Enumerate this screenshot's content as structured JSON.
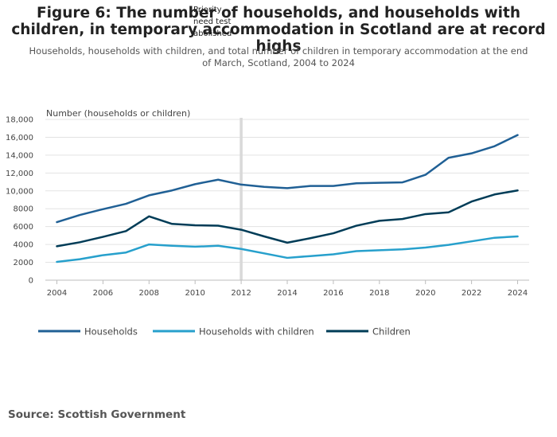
{
  "title": "Figure 6: The number of households, and households with children, in temporary accommodation in Scotland are at record highs",
  "subtitle": "Households, households with children, and total number of children in temporary accommodation at the end of March, Scotland, 2004 to 2024",
  "source": "Source: Scottish Government",
  "chart_data": {
    "type": "line",
    "title": "Figure 6: The number of households, and households with children, in temporary accommodation in Scotland are at record highs",
    "xlabel": "",
    "ylabel": "Number (households or children)",
    "x": [
      2004,
      2005,
      2006,
      2007,
      2008,
      2009,
      2010,
      2011,
      2012,
      2013,
      2014,
      2015,
      2016,
      2017,
      2018,
      2019,
      2020,
      2021,
      2022,
      2023,
      2024
    ],
    "xlim": [
      2003.5,
      2024.5
    ],
    "ylim": [
      0,
      18000
    ],
    "x_ticks": [
      "2004",
      "2006",
      "2008",
      "2010",
      "2012",
      "2014",
      "2016",
      "2018",
      "2020",
      "2022",
      "2024"
    ],
    "y_ticks": [
      "0",
      "2000",
      "4000",
      "6000",
      "8000",
      "10,000",
      "12,000",
      "14,000",
      "16,000",
      "18,000"
    ],
    "grid": true,
    "legend_position": "bottom",
    "annotation": {
      "x": 2012,
      "lines": [
        "Priority",
        "need test",
        "abolished"
      ]
    },
    "series": [
      {
        "name": "Households",
        "color": "#206095",
        "values": [
          6500,
          7300,
          7950,
          8550,
          9500,
          10050,
          10750,
          11250,
          10700,
          10450,
          10300,
          10550,
          10550,
          10850,
          10900,
          10950,
          11800,
          13700,
          14200,
          15000,
          16250
        ]
      },
      {
        "name": "Households with children",
        "color": "#27a0cc",
        "values": [
          2050,
          2350,
          2800,
          3100,
          4000,
          3850,
          3750,
          3850,
          3500,
          3000,
          2500,
          2700,
          2900,
          3250,
          3350,
          3450,
          3650,
          3950,
          4350,
          4750,
          4900
        ]
      },
      {
        "name": "Children",
        "color": "#003c57",
        "values": [
          3800,
          4250,
          4850,
          5500,
          7150,
          6300,
          6150,
          6100,
          5650,
          4900,
          4200,
          4700,
          5250,
          6100,
          6650,
          6850,
          7400,
          7600,
          8800,
          9600,
          10050
        ]
      }
    ]
  }
}
